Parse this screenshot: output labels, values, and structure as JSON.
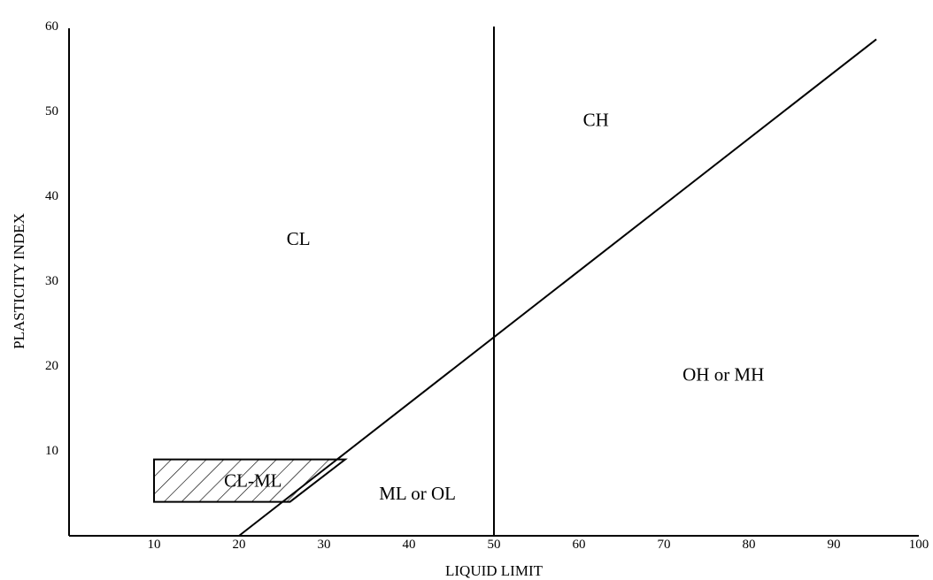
{
  "chart_data": {
    "type": "line",
    "xlabel": "LIQUID LIMIT",
    "ylabel": "PLASTICITY INDEX",
    "xlim": [
      0,
      100
    ],
    "ylim": [
      0,
      60
    ],
    "x_ticks": [
      "10",
      "20",
      "30",
      "40",
      "50",
      "60",
      "70",
      "80",
      "90",
      "100"
    ],
    "y_ticks": [
      "10",
      "20",
      "30",
      "40",
      "50",
      "60"
    ],
    "series": [
      {
        "points": [
          [
            20,
            0
          ],
          [
            95,
            58.5
          ]
        ]
      },
      {
        "points": [
          [
            50,
            0
          ],
          [
            50,
            60
          ]
        ]
      }
    ],
    "hatched_region": {
      "label": "CL-ML",
      "polygon": [
        [
          10,
          4
        ],
        [
          26,
          4
        ],
        [
          32.5,
          9
        ],
        [
          10,
          9
        ]
      ]
    },
    "region_labels": [
      {
        "text": "CL",
        "x": 27,
        "y": 35
      },
      {
        "text": "CH",
        "x": 62,
        "y": 49
      },
      {
        "text": "OH or MH",
        "x": 77,
        "y": 19
      },
      {
        "text": "ML or OL",
        "x": 41,
        "y": 5
      }
    ],
    "grid": false
  }
}
